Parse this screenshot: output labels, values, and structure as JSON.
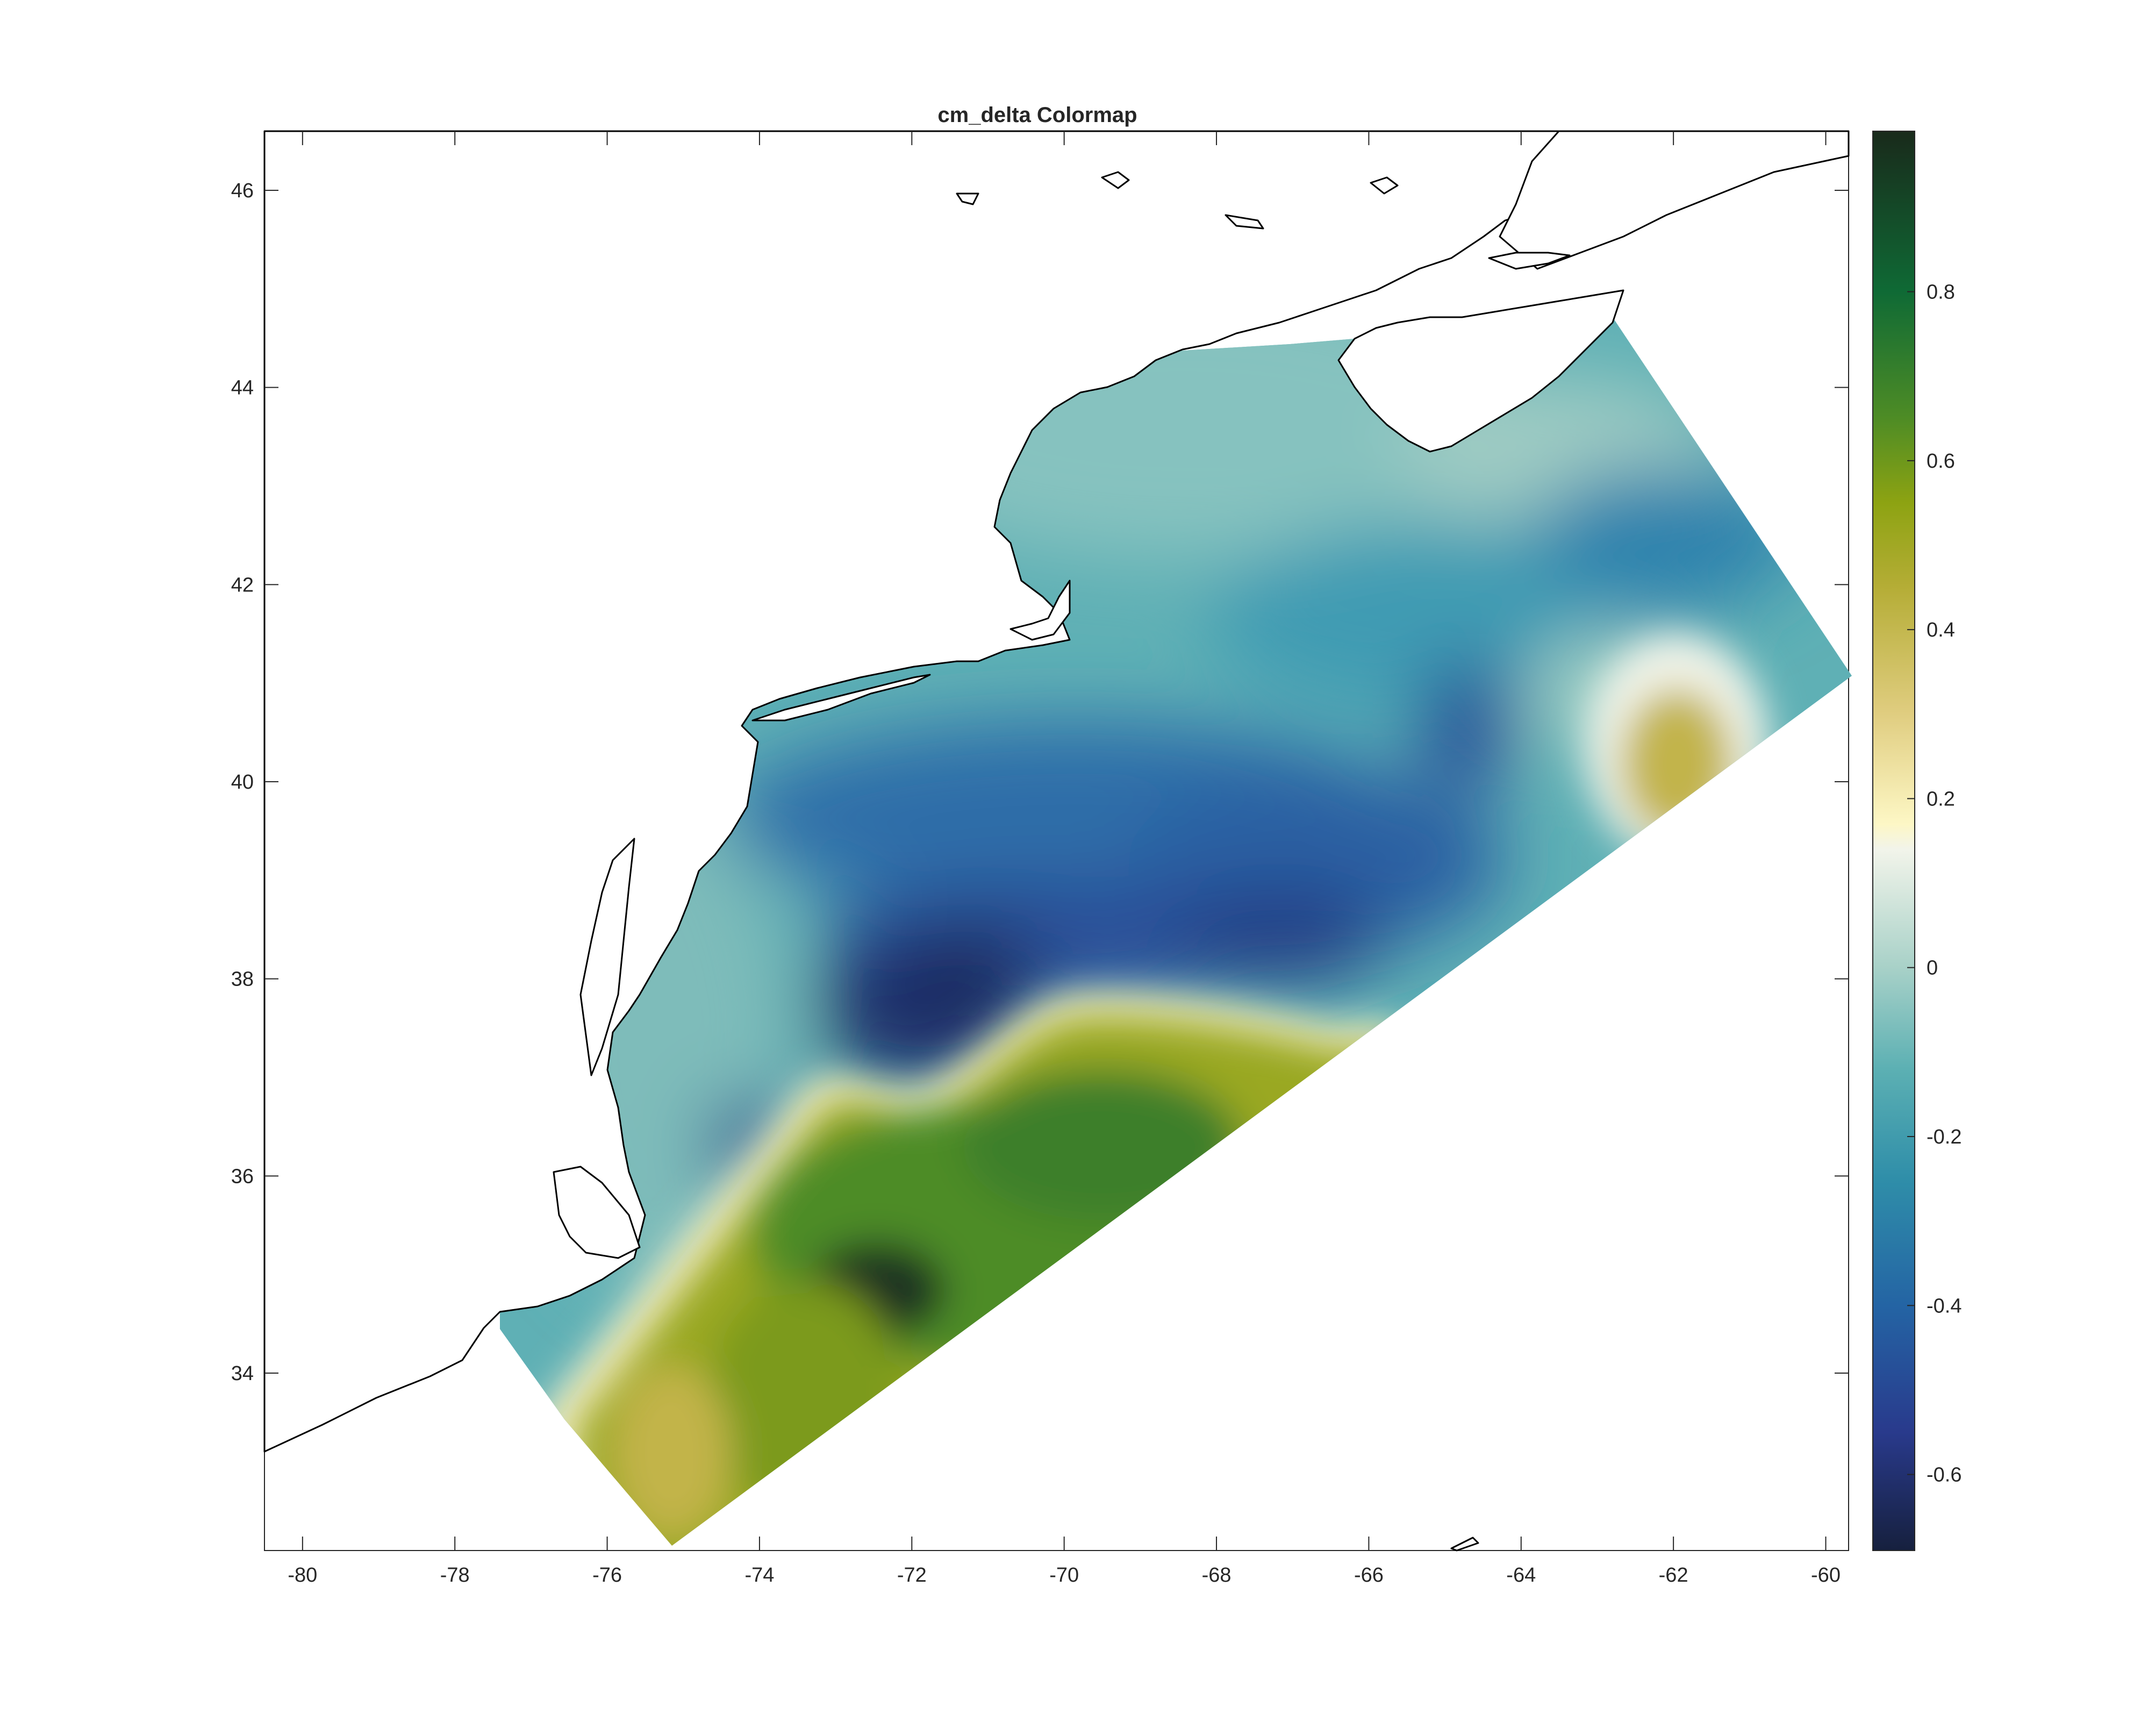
{
  "figure": {
    "title": "cm_delta Colormap"
  },
  "map": {
    "lon_range": [
      -80.5,
      -59.7
    ],
    "lat_range": [
      32.2,
      46.6
    ],
    "lon_ticks": [
      -80,
      -78,
      -76,
      -74,
      -72,
      -70,
      -68,
      -66,
      -64,
      -62,
      -60
    ],
    "lat_ticks": [
      34,
      36,
      38,
      40,
      42,
      44,
      46
    ],
    "features": [
      "coastline-east-coast-us",
      "nova-scotia",
      "cape-cod",
      "long-island",
      "chesapeake-bay",
      "outer-banks"
    ]
  },
  "colorbar": {
    "range": [
      -0.69,
      0.99
    ],
    "ticks": [
      -0.6,
      -0.4,
      -0.2,
      0,
      0.2,
      0.4,
      0.6,
      0.8
    ],
    "stops": [
      {
        "value": -0.69,
        "color": "#16203e"
      },
      {
        "value": -0.55,
        "color": "#293a8c"
      },
      {
        "value": -0.4,
        "color": "#2464a4"
      },
      {
        "value": -0.25,
        "color": "#2f8ea9"
      },
      {
        "value": -0.12,
        "color": "#5cb0b3"
      },
      {
        "value": 0.0,
        "color": "#a8d1c8"
      },
      {
        "value": 0.14,
        "color": "#f2f4ea"
      },
      {
        "value": 0.17,
        "color": "#fdf7c5"
      },
      {
        "value": 0.3,
        "color": "#e0cd80"
      },
      {
        "value": 0.45,
        "color": "#b5ad36"
      },
      {
        "value": 0.55,
        "color": "#8da312"
      },
      {
        "value": 0.65,
        "color": "#4e8c25"
      },
      {
        "value": 0.8,
        "color": "#0f6a35"
      },
      {
        "value": 0.99,
        "color": "#192a1b"
      }
    ]
  }
}
